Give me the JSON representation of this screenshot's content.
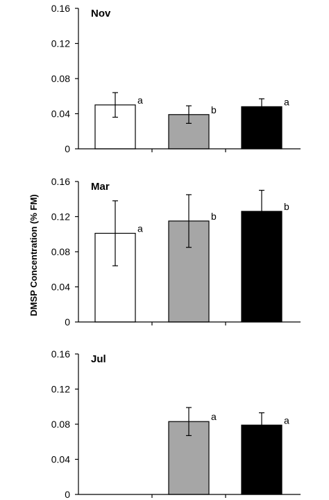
{
  "chart_data": {
    "type": "bar",
    "ylabel": "DMSP Concentration (% FM)",
    "yticks": [
      "0",
      "0.04",
      "0.08",
      "0.12",
      "0.16"
    ],
    "ylim": [
      0,
      0.16
    ],
    "colors": [
      "#ffffff",
      "#a6a6a6",
      "#000000"
    ],
    "panels": [
      {
        "title": "Nov",
        "bars": [
          {
            "value": 0.05,
            "err": 0.014,
            "label": "a"
          },
          {
            "value": 0.039,
            "err": 0.01,
            "label": "b"
          },
          {
            "value": 0.048,
            "err": 0.009,
            "label": "a"
          }
        ]
      },
      {
        "title": "Mar",
        "bars": [
          {
            "value": 0.101,
            "err": 0.037,
            "label": "a"
          },
          {
            "value": 0.115,
            "err": 0.03,
            "label": "b"
          },
          {
            "value": 0.126,
            "err": 0.024,
            "label": "b"
          }
        ]
      },
      {
        "title": "Jul",
        "bars": [
          null,
          {
            "value": 0.083,
            "err": 0.016,
            "label": "a"
          },
          {
            "value": 0.079,
            "err": 0.014,
            "label": "a"
          }
        ]
      }
    ]
  }
}
